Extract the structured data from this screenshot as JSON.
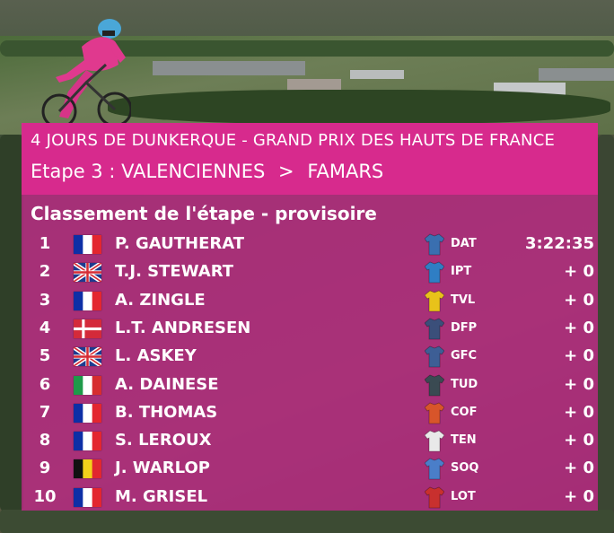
{
  "header": {
    "race_title": "4 JOURS DE DUNKERQUE - GRAND PRIX DES HAUTS DE FRANCE",
    "stage_label": "Etape 3 :",
    "start": "VALENCIENNES",
    "separator": ">",
    "finish": "FAMARS"
  },
  "classification": {
    "title": "Classement de l'étape  - provisoire",
    "rows": [
      {
        "pos": "1",
        "flag": "fr",
        "name": "P. GAUTHERAT",
        "team": "DAT",
        "jersey": "#3a6fb0",
        "time": "3:22:35"
      },
      {
        "pos": "2",
        "flag": "gb",
        "name": "T.J. STEWART",
        "team": "IPT",
        "jersey": "#2f7ec4",
        "time": "+ 0"
      },
      {
        "pos": "3",
        "flag": "fr",
        "name": "A. ZINGLE",
        "team": "TVL",
        "jersey": "#e8c21a",
        "time": "+ 0"
      },
      {
        "pos": "4",
        "flag": "dk",
        "name": "L.T. ANDRESEN",
        "team": "DFP",
        "jersey": "#3b4f7a",
        "time": "+ 0"
      },
      {
        "pos": "5",
        "flag": "gb",
        "name": "L. ASKEY",
        "team": "GFC",
        "jersey": "#3d5e95",
        "time": "+ 0"
      },
      {
        "pos": "6",
        "flag": "it",
        "name": "A. DAINESE",
        "team": "TUD",
        "jersey": "#3a4a52",
        "time": "+ 0"
      },
      {
        "pos": "7",
        "flag": "fr",
        "name": "B. THOMAS",
        "team": "COF",
        "jersey": "#d8552a",
        "time": "+ 0"
      },
      {
        "pos": "8",
        "flag": "fr",
        "name": "S. LEROUX",
        "team": "TEN",
        "jersey": "#e9e9e9",
        "time": "+ 0"
      },
      {
        "pos": "9",
        "flag": "be",
        "name": "J. WARLOP",
        "team": "SOQ",
        "jersey": "#4a7ec9",
        "time": "+ 0"
      },
      {
        "pos": "10",
        "flag": "fr",
        "name": "M. GRISEL",
        "team": "LOT",
        "jersey": "#c8302e",
        "time": "+ 0"
      }
    ]
  },
  "colors": {
    "header_band": "#d72a8d",
    "panel": "#be2887"
  }
}
